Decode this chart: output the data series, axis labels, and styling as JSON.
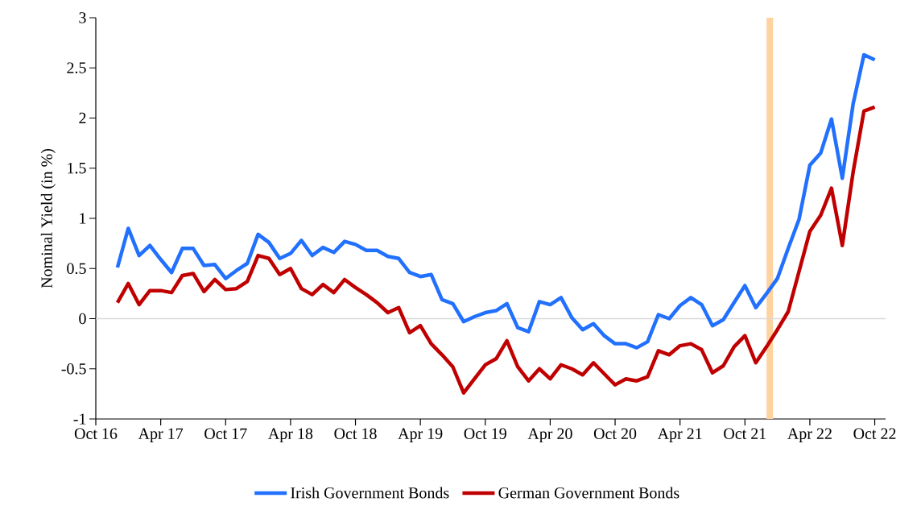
{
  "chart_data": {
    "type": "line",
    "ylabel": "Nominal Yield (in %)",
    "x": [
      "2016-12",
      "2017-01",
      "2017-02",
      "2017-03",
      "2017-04",
      "2017-05",
      "2017-06",
      "2017-07",
      "2017-08",
      "2017-09",
      "2017-10",
      "2017-11",
      "2017-12",
      "2018-01",
      "2018-02",
      "2018-03",
      "2018-04",
      "2018-05",
      "2018-06",
      "2018-07",
      "2018-08",
      "2018-09",
      "2018-10",
      "2018-11",
      "2018-12",
      "2019-01",
      "2019-02",
      "2019-03",
      "2019-04",
      "2019-05",
      "2019-06",
      "2019-07",
      "2019-08",
      "2019-09",
      "2019-10",
      "2019-11",
      "2019-12",
      "2020-01",
      "2020-02",
      "2020-03",
      "2020-04",
      "2020-05",
      "2020-06",
      "2020-07",
      "2020-08",
      "2020-09",
      "2020-10",
      "2020-11",
      "2020-12",
      "2021-01",
      "2021-02",
      "2021-03",
      "2021-04",
      "2021-05",
      "2021-06",
      "2021-07",
      "2021-08",
      "2021-09",
      "2021-10",
      "2021-11",
      "2021-12",
      "2022-01",
      "2022-02",
      "2022-03",
      "2022-04",
      "2022-05",
      "2022-06",
      "2022-07",
      "2022-08",
      "2022-09",
      "2022-10"
    ],
    "series": [
      {
        "name": "Irish Government Bonds",
        "color": "#2170fe",
        "values": [
          0.51,
          0.9,
          0.63,
          0.73,
          0.59,
          0.46,
          0.7,
          0.7,
          0.53,
          0.54,
          0.4,
          0.48,
          0.55,
          0.84,
          0.76,
          0.6,
          0.65,
          0.78,
          0.63,
          0.71,
          0.66,
          0.77,
          0.74,
          0.68,
          0.68,
          0.62,
          0.6,
          0.46,
          0.42,
          0.44,
          0.19,
          0.15,
          -0.03,
          0.02,
          0.06,
          0.08,
          0.15,
          -0.09,
          -0.13,
          0.17,
          0.14,
          0.21,
          0.01,
          -0.11,
          -0.05,
          -0.17,
          -0.25,
          -0.25,
          -0.29,
          -0.23,
          0.04,
          0.0,
          0.13,
          0.21,
          0.14,
          -0.07,
          -0.01,
          0.16,
          0.33,
          0.11,
          0.25,
          0.4,
          0.7,
          0.99,
          1.53,
          1.65,
          1.99,
          1.4,
          2.14,
          2.63,
          2.58
        ]
      },
      {
        "name": "German Government Bonds",
        "color": "#c00000",
        "values": [
          0.16,
          0.35,
          0.14,
          0.28,
          0.28,
          0.26,
          0.43,
          0.45,
          0.27,
          0.39,
          0.29,
          0.3,
          0.37,
          0.63,
          0.6,
          0.44,
          0.5,
          0.3,
          0.24,
          0.34,
          0.26,
          0.39,
          0.31,
          0.24,
          0.16,
          0.06,
          0.11,
          -0.14,
          -0.07,
          -0.25,
          -0.36,
          -0.48,
          -0.74,
          -0.6,
          -0.46,
          -0.4,
          -0.22,
          -0.48,
          -0.62,
          -0.5,
          -0.6,
          -0.46,
          -0.5,
          -0.56,
          -0.44,
          -0.55,
          -0.66,
          -0.6,
          -0.62,
          -0.58,
          -0.32,
          -0.36,
          -0.27,
          -0.25,
          -0.31,
          -0.54,
          -0.47,
          -0.28,
          -0.17,
          -0.44,
          -0.28,
          -0.11,
          0.07,
          0.47,
          0.87,
          1.03,
          1.3,
          0.73,
          1.46,
          2.07,
          2.11
        ]
      }
    ],
    "xlim": [
      "2016-10",
      "2022-11"
    ],
    "xticks": [
      {
        "value": "2016-10",
        "label": "Oct 16"
      },
      {
        "value": "2017-04",
        "label": "Apr 17"
      },
      {
        "value": "2017-10",
        "label": "Oct 17"
      },
      {
        "value": "2018-04",
        "label": "Apr 18"
      },
      {
        "value": "2018-10",
        "label": "Oct 18"
      },
      {
        "value": "2019-04",
        "label": "Apr 19"
      },
      {
        "value": "2019-10",
        "label": "Oct 19"
      },
      {
        "value": "2020-04",
        "label": "Apr 20"
      },
      {
        "value": "2020-10",
        "label": "Oct 20"
      },
      {
        "value": "2021-04",
        "label": "Apr 21"
      },
      {
        "value": "2021-10",
        "label": "Oct 21"
      },
      {
        "value": "2022-04",
        "label": "Apr 22"
      },
      {
        "value": "2022-10",
        "label": "Oct 22"
      }
    ],
    "ylim": [
      -1,
      3
    ],
    "yticks": [
      -1,
      -0.5,
      0,
      0.5,
      1,
      1.5,
      2,
      2.5,
      3
    ],
    "ref_lines": [
      {
        "axis": "y",
        "value": 0,
        "color": "#d9d9d9"
      }
    ],
    "bands": [
      {
        "axis": "x",
        "from": "2021-12-01",
        "to": "2021-12-19",
        "color": "#ffd3a0"
      }
    ],
    "legend": "bottom",
    "grid": false,
    "marker": "none",
    "line_style": "solid"
  }
}
